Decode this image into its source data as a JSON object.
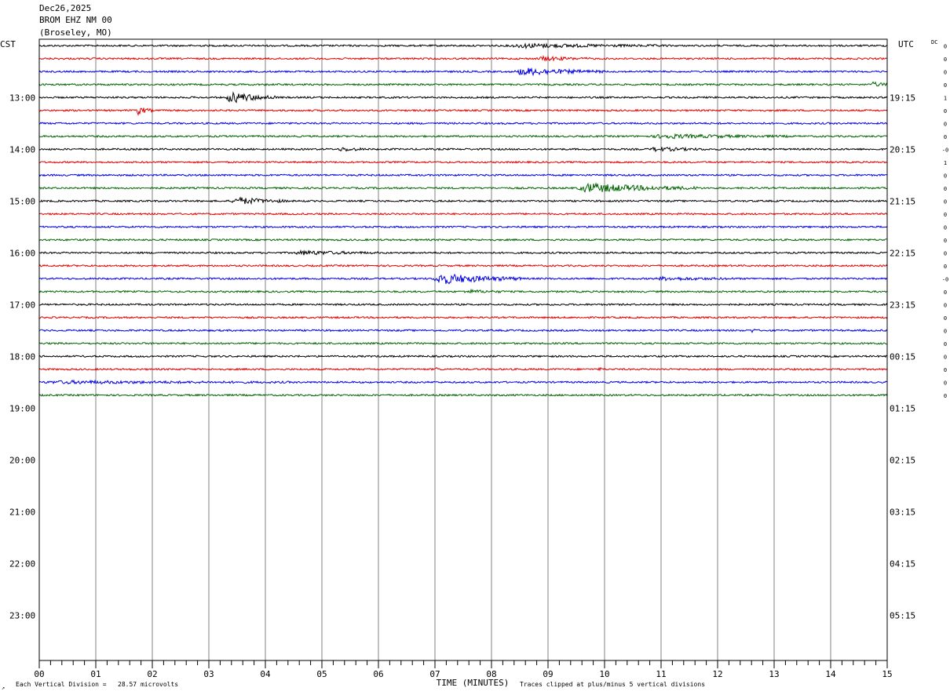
{
  "header": {
    "date": "Dec26,2025",
    "station": "BROM EHZ NM 00",
    "location": "(Broseley, MO)"
  },
  "labels": {
    "left_tz": "CST",
    "right_tz": "UTC",
    "dc": "DC",
    "xlabel": "TIME (MINUTES)",
    "vertical_division": "Each Vertical Division =   28.57 microvolts",
    "clip_note": "Traces clipped at plus/minus 5 vertical divisions",
    "corner_mark": "↗"
  },
  "chart_data": {
    "type": "line",
    "title": "BROM EHZ NM 00",
    "xlabel": "TIME (MINUTES)",
    "xlim": [
      0,
      15
    ],
    "x_ticks": [
      "00",
      "01",
      "02",
      "03",
      "04",
      "05",
      "06",
      "07",
      "08",
      "09",
      "10",
      "11",
      "12",
      "13",
      "14",
      "15"
    ],
    "left_hour_labels": [
      "13:00",
      "14:00",
      "15:00",
      "16:00",
      "17:00",
      "18:00",
      "19:00",
      "20:00",
      "21:00",
      "22:00",
      "23:00"
    ],
    "right_hour_labels": [
      "19:15",
      "20:15",
      "21:15",
      "22:15",
      "23:15",
      "00:15",
      "01:15",
      "02:15",
      "03:15",
      "04:15",
      "05:15"
    ],
    "first_labeled_row": 4,
    "rows_per_hour": 4,
    "total_rows": 48,
    "trace_count": 28,
    "trace_colors": [
      "#000000",
      "#e00000",
      "#0000e0",
      "#006400"
    ],
    "dc_values": [
      "0",
      "0",
      "0",
      "0",
      "1",
      "0",
      "0",
      "0",
      "-0",
      "1",
      "0",
      "0",
      "0",
      "0",
      "0",
      "0",
      "0",
      "0",
      "-0",
      "0",
      "0",
      "0",
      "0",
      "0",
      "0",
      "0",
      "0",
      "0"
    ],
    "events": [
      {
        "row": 0,
        "minute": 8.3,
        "duration": 2.8,
        "amp": 2
      },
      {
        "row": 1,
        "minute": 8.8,
        "duration": 1.0,
        "amp": 2
      },
      {
        "row": 2,
        "minute": 8.4,
        "duration": 1.6,
        "amp": 4
      },
      {
        "row": 3,
        "minute": 14.7,
        "duration": 0.5,
        "amp": 2
      },
      {
        "row": 4,
        "minute": 3.3,
        "duration": 0.9,
        "amp": 6
      },
      {
        "row": 5,
        "minute": 1.7,
        "duration": 0.3,
        "amp": 5
      },
      {
        "row": 7,
        "minute": 10.8,
        "duration": 2.5,
        "amp": 2
      },
      {
        "row": 8,
        "minute": 5.3,
        "duration": 0.5,
        "amp": 2
      },
      {
        "row": 8,
        "minute": 10.8,
        "duration": 1.0,
        "amp": 2
      },
      {
        "row": 11,
        "minute": 9.5,
        "duration": 2.2,
        "amp": 5
      },
      {
        "row": 12,
        "minute": 3.4,
        "duration": 1.0,
        "amp": 4
      },
      {
        "row": 16,
        "minute": 4.5,
        "duration": 1.5,
        "amp": 2
      },
      {
        "row": 18,
        "minute": 6.95,
        "duration": 1.6,
        "amp": 6
      },
      {
        "row": 18,
        "minute": 10.9,
        "duration": 1.4,
        "amp": 1.5
      },
      {
        "row": 19,
        "minute": 7.5,
        "duration": 0.8,
        "amp": 1.5
      },
      {
        "row": 22,
        "minute": 12.6,
        "duration": 0.1,
        "amp": 2
      },
      {
        "row": 25,
        "minute": 7.0,
        "duration": 0.1,
        "amp": 2
      },
      {
        "row": 25,
        "minute": 9.9,
        "duration": 0.1,
        "amp": 2
      },
      {
        "row": 26,
        "minute": 0.0,
        "duration": 4.5,
        "amp": 1.2
      }
    ]
  }
}
